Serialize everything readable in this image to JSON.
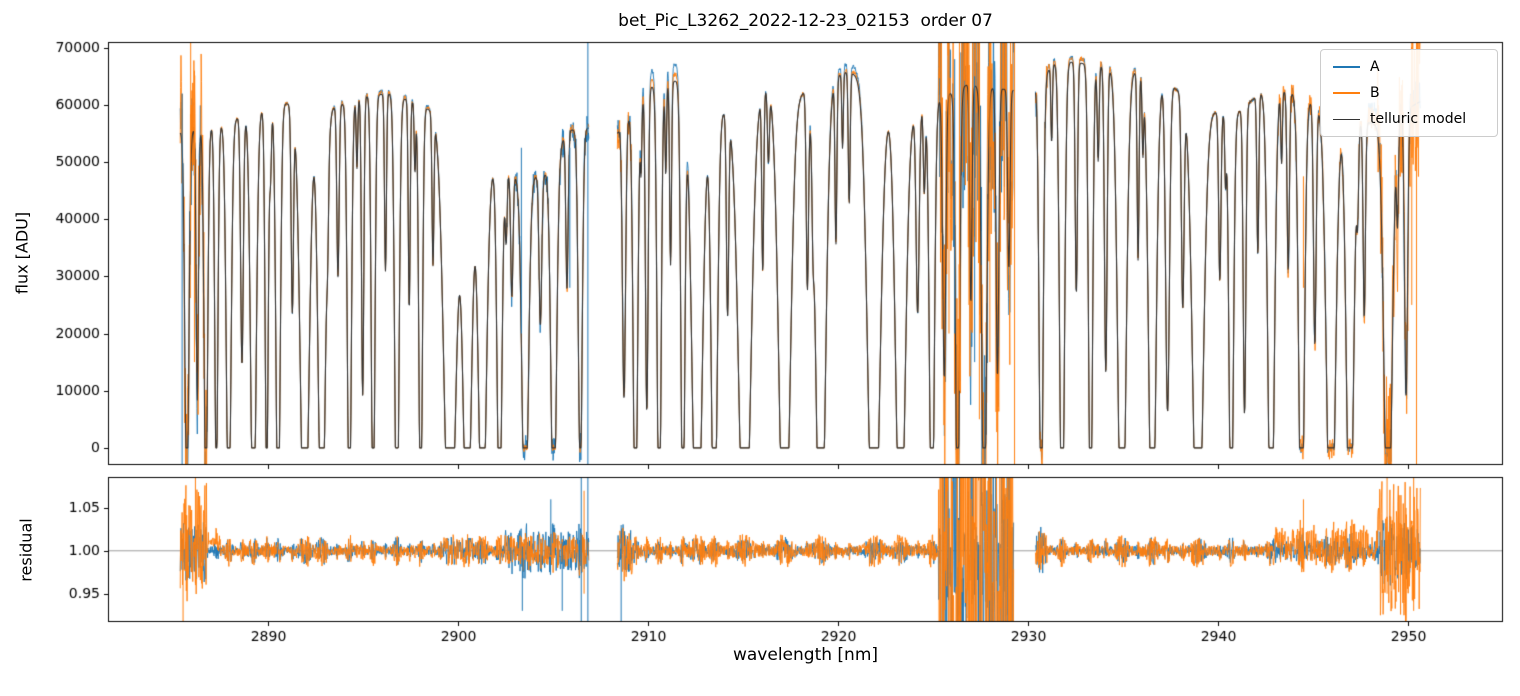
{
  "chart_data": {
    "type": "line",
    "title": "bet_Pic_L3262_2022-12-23_02153  order 07",
    "xlabel": "wavelength [nm]",
    "xlim": [
      2881.6,
      2955.0
    ],
    "xticks": [
      2890,
      2900,
      2910,
      2920,
      2930,
      2940,
      2950
    ],
    "legend_labels": [
      "A",
      "B",
      "telluric model"
    ],
    "legend_position": "upper right",
    "grid": false,
    "colors": {
      "A": "#1f77b4",
      "B": "#ff7f0e",
      "model": "#333333",
      "axhline": "#808080"
    },
    "panels": [
      {
        "ylabel": "flux [ADU]",
        "ylim": [
          -3000,
          71000
        ],
        "yticks": [
          0,
          10000,
          20000,
          30000,
          40000,
          50000,
          60000,
          70000
        ],
        "ytick_labels": [
          "0",
          "10000",
          "20000",
          "30000",
          "40000",
          "50000",
          "60000",
          "70000"
        ]
      },
      {
        "ylabel": "residual",
        "ylim": [
          0.917,
          1.086
        ],
        "yticks": [
          0.95,
          1.0,
          1.05
        ],
        "ytick_labels": [
          "0.95",
          "1.00",
          "1.05"
        ],
        "axhline": 1.0
      }
    ],
    "segments": [
      [
        2885.4,
        2906.9
      ],
      [
        2908.4,
        2929.25
      ],
      [
        2930.4,
        2950.65
      ]
    ],
    "continuum_points": [
      [
        2885.0,
        55000
      ],
      [
        2887.5,
        56500
      ],
      [
        2890.5,
        60500
      ],
      [
        2893.0,
        59000
      ],
      [
        2895.0,
        61500
      ],
      [
        2896.5,
        62000
      ],
      [
        2898.0,
        60000
      ],
      [
        2899.5,
        57500
      ],
      [
        2901.5,
        50000
      ],
      [
        2903.0,
        47500
      ],
      [
        2904.5,
        47500
      ],
      [
        2905.8,
        55500
      ],
      [
        2907.0,
        56000
      ],
      [
        2908.4,
        55000
      ],
      [
        2910.0,
        63000
      ],
      [
        2911.5,
        64200
      ],
      [
        2913.0,
        59500
      ],
      [
        2914.5,
        58500
      ],
      [
        2916.5,
        63500
      ],
      [
        2918.0,
        62000
      ],
      [
        2920.5,
        65800
      ],
      [
        2921.8,
        64500
      ],
      [
        2923.5,
        57500
      ],
      [
        2925.0,
        60500
      ],
      [
        2926.8,
        63500
      ],
      [
        2929.3,
        62500
      ],
      [
        2930.4,
        63000
      ],
      [
        2931.5,
        67800
      ],
      [
        2933.5,
        67000
      ],
      [
        2935.5,
        66000
      ],
      [
        2937.5,
        63500
      ],
      [
        2939.0,
        59500
      ],
      [
        2940.8,
        58000
      ],
      [
        2942.5,
        62800
      ],
      [
        2944.0,
        62000
      ],
      [
        2945.5,
        59500
      ],
      [
        2947.0,
        57500
      ],
      [
        2948.5,
        56500
      ],
      [
        2950.6,
        60500
      ]
    ],
    "absorption_lines": [
      [
        2885.75,
        1.2,
        0.1
      ],
      [
        2886.3,
        0.85,
        0.06
      ],
      [
        2886.75,
        1.2,
        0.09
      ],
      [
        2887.3,
        1.1,
        0.08
      ],
      [
        2887.95,
        1.25,
        0.12
      ],
      [
        2888.65,
        0.75,
        0.07
      ],
      [
        2889.25,
        1.3,
        0.14
      ],
      [
        2889.95,
        1.1,
        0.08
      ],
      [
        2890.15,
        0.2,
        0.05
      ],
      [
        2890.55,
        1.25,
        0.11
      ],
      [
        2891.3,
        0.6,
        0.06
      ],
      [
        2891.95,
        1.35,
        0.22
      ],
      [
        2892.85,
        1.35,
        0.18
      ],
      [
        2893.15,
        0.25,
        0.05
      ],
      [
        2893.7,
        0.5,
        0.06
      ],
      [
        2894.3,
        1.25,
        0.1
      ],
      [
        2894.7,
        0.2,
        0.04
      ],
      [
        2895.0,
        0.85,
        0.06
      ],
      [
        2895.55,
        1.25,
        0.09
      ],
      [
        2896.2,
        0.5,
        0.05
      ],
      [
        2896.8,
        1.3,
        0.11
      ],
      [
        2897.45,
        0.6,
        0.05
      ],
      [
        2897.75,
        0.2,
        0.04
      ],
      [
        2898.05,
        1.25,
        0.09
      ],
      [
        2898.7,
        0.45,
        0.05
      ],
      [
        2899.6,
        1.4,
        0.3
      ],
      [
        2900.5,
        1.35,
        0.22
      ],
      [
        2901.3,
        1.35,
        0.2
      ],
      [
        2902.2,
        1.3,
        0.12
      ],
      [
        2902.55,
        0.25,
        0.05
      ],
      [
        2902.85,
        0.45,
        0.06
      ],
      [
        2903.55,
        1.35,
        0.16
      ],
      [
        2904.35,
        0.55,
        0.07
      ],
      [
        2905.05,
        1.3,
        0.14
      ],
      [
        2905.75,
        0.5,
        0.06
      ],
      [
        2906.45,
        1.1,
        0.1
      ],
      [
        2908.75,
        0.85,
        0.08
      ],
      [
        2909.35,
        1.3,
        0.11
      ],
      [
        2909.65,
        0.2,
        0.04
      ],
      [
        2909.95,
        0.9,
        0.07
      ],
      [
        2910.6,
        1.3,
        0.1
      ],
      [
        2910.95,
        0.25,
        0.04
      ],
      [
        2911.2,
        0.5,
        0.05
      ],
      [
        2911.85,
        1.25,
        0.1
      ],
      [
        2912.6,
        1.4,
        0.25
      ],
      [
        2913.5,
        1.35,
        0.15
      ],
      [
        2914.2,
        0.6,
        0.06
      ],
      [
        2915.1,
        1.4,
        0.3
      ],
      [
        2916.05,
        0.5,
        0.05
      ],
      [
        2916.35,
        0.2,
        0.05
      ],
      [
        2917.2,
        1.4,
        0.28
      ],
      [
        2918.4,
        0.55,
        0.06
      ],
      [
        2918.7,
        0.25,
        0.05
      ],
      [
        2919.1,
        1.4,
        0.24
      ],
      [
        2919.9,
        0.45,
        0.05
      ],
      [
        2920.25,
        0.2,
        0.04
      ],
      [
        2920.6,
        0.35,
        0.05
      ],
      [
        2921.9,
        1.4,
        0.3
      ],
      [
        2923.3,
        1.35,
        0.24
      ],
      [
        2924.2,
        0.6,
        0.08
      ],
      [
        2924.55,
        0.25,
        0.05
      ],
      [
        2924.95,
        1.35,
        0.12
      ],
      [
        2925.6,
        0.8,
        0.08
      ],
      [
        2926.3,
        1.25,
        0.1
      ],
      [
        2927.0,
        0.6,
        0.06
      ],
      [
        2927.7,
        1.3,
        0.12
      ],
      [
        2928.4,
        0.8,
        0.07
      ],
      [
        2929.0,
        0.5,
        0.06
      ],
      [
        2930.7,
        1.25,
        0.1
      ],
      [
        2931.25,
        0.2,
        0.04
      ],
      [
        2931.8,
        1.3,
        0.12
      ],
      [
        2932.55,
        0.6,
        0.06
      ],
      [
        2933.3,
        1.25,
        0.1
      ],
      [
        2933.7,
        0.25,
        0.05
      ],
      [
        2934.1,
        0.8,
        0.07
      ],
      [
        2934.95,
        1.4,
        0.2
      ],
      [
        2935.8,
        0.5,
        0.05
      ],
      [
        2936.05,
        0.2,
        0.04
      ],
      [
        2936.55,
        1.35,
        0.18
      ],
      [
        2937.35,
        0.9,
        0.1
      ],
      [
        2938.15,
        0.6,
        0.07
      ],
      [
        2938.95,
        1.4,
        0.26
      ],
      [
        2940.1,
        0.5,
        0.06
      ],
      [
        2940.4,
        0.2,
        0.04
      ],
      [
        2940.7,
        1.3,
        0.11
      ],
      [
        2941.4,
        0.9,
        0.07
      ],
      [
        2942.1,
        0.45,
        0.05
      ],
      [
        2942.8,
        1.35,
        0.16
      ],
      [
        2943.35,
        0.2,
        0.04
      ],
      [
        2943.7,
        0.5,
        0.06
      ],
      [
        2944.4,
        1.35,
        0.14
      ],
      [
        2945.1,
        0.7,
        0.07
      ],
      [
        2945.95,
        1.4,
        0.22
      ],
      [
        2946.95,
        1.35,
        0.18
      ],
      [
        2947.35,
        0.25,
        0.05
      ],
      [
        2947.7,
        0.6,
        0.06
      ],
      [
        2948.95,
        1.35,
        0.2
      ],
      [
        2949.45,
        0.3,
        0.05
      ],
      [
        2949.9,
        0.85,
        0.08
      ]
    ],
    "noise_regions": [
      {
        "range": [
          2885.4,
          2886.8
        ],
        "fluxA": 0.15,
        "fluxB": 0.28,
        "resA": 0.025,
        "resB": 0.05
      },
      {
        "range": [
          2902.5,
          2906.9
        ],
        "fluxA": 0.05,
        "fluxB": 0.015,
        "resA": 0.018,
        "resB": 0.01
      },
      {
        "range": [
          2908.4,
          2909.2
        ],
        "fluxA": 0.05,
        "fluxB": 0.05,
        "resA": 0.02,
        "resB": 0.02
      },
      {
        "range": [
          2925.3,
          2929.25
        ],
        "fluxA": 0.32,
        "fluxB": 0.45,
        "resA": 0.12,
        "resB": 0.2
      },
      {
        "range": [
          2930.4,
          2931.0
        ],
        "fluxA": 0.05,
        "fluxB": 0.05,
        "resA": 0.012,
        "resB": 0.012
      },
      {
        "range": [
          2943.0,
          2948.4
        ],
        "fluxA": 0.015,
        "fluxB": 0.035,
        "resA": 0.006,
        "resB": 0.013
      },
      {
        "range": [
          2948.4,
          2950.65
        ],
        "fluxA": 0.07,
        "fluxB": 0.22,
        "resA": 0.025,
        "resB": 0.07
      }
    ],
    "offsets": [
      {
        "range": [
          2893.5,
          2899.0
        ],
        "A": 0.008,
        "B": 0.005
      },
      {
        "range": [
          2909.6,
          2912.2
        ],
        "A": 0.045,
        "B": 0.018
      },
      {
        "range": [
          2918.3,
          2921.4
        ],
        "A": 0.02,
        "B": 0.008
      },
      {
        "range": [
          2930.4,
          2936.2
        ],
        "A": 0.012,
        "B": 0.012
      },
      {
        "range": [
          2947.9,
          2948.7
        ],
        "A": 0.05,
        "B": 0.02
      }
    ],
    "res_bias": [
      {
        "range": [
          2943.0,
          2948.4
        ],
        "B": 0.006
      },
      {
        "range": [
          2885.4,
          2887.5
        ],
        "B": 0.01
      }
    ],
    "spikes": [
      {
        "x": 2885.5,
        "s": "A",
        "y0": -3000,
        "y1": 62000
      },
      {
        "x": 2885.95,
        "s": "B",
        "y0": 38000,
        "y1": 71000
      },
      {
        "x": 2886.15,
        "s": "B",
        "y0": 15000,
        "y1": 66000
      },
      {
        "x": 2903.35,
        "s": "A",
        "y0": 20000,
        "y1": 52500
      },
      {
        "x": 2905.9,
        "s": "A",
        "y0": 28000,
        "y1": 52500
      },
      {
        "x": 2906.85,
        "s": "A",
        "y0": -3000,
        "y1": 71000
      },
      {
        "x": 2925.85,
        "s": "B",
        "y0": 20000,
        "y1": 71000
      },
      {
        "x": 2926.4,
        "s": "B",
        "y0": 10000,
        "y1": 71000
      },
      {
        "x": 2926.9,
        "s": "B",
        "y0": 25000,
        "y1": 71000
      },
      {
        "x": 2927.45,
        "s": "B",
        "y0": 5000,
        "y1": 71000
      },
      {
        "x": 2928.0,
        "s": "B",
        "y0": 15000,
        "y1": 71000
      },
      {
        "x": 2926.15,
        "s": "A",
        "y0": 20000,
        "y1": 68000
      },
      {
        "x": 2927.2,
        "s": "A",
        "y0": 15000,
        "y1": 65000
      },
      {
        "x": 2929.3,
        "s": "B",
        "y0": -3000,
        "y1": 71000
      },
      {
        "x": 2944.5,
        "s": "B",
        "y0": 28000,
        "y1": 47500
      },
      {
        "x": 2950.2,
        "s": "B",
        "y0": 25000,
        "y1": 71000
      },
      {
        "x": 2950.45,
        "s": "B",
        "y0": -3000,
        "y1": 71000
      }
    ],
    "res_spikes": [
      {
        "x": 2885.55,
        "s": "B",
        "r0": 0.917,
        "r1": 1.02
      },
      {
        "x": 2886.2,
        "s": "B",
        "r0": 0.96,
        "r1": 1.086
      },
      {
        "x": 2903.4,
        "s": "A",
        "r0": 0.93,
        "r1": 1.005
      },
      {
        "x": 2904.9,
        "s": "A",
        "r0": 0.995,
        "r1": 1.06
      },
      {
        "x": 2905.5,
        "s": "A",
        "r0": 0.93,
        "r1": 1.01
      },
      {
        "x": 2906.5,
        "s": "A",
        "r0": 0.917,
        "r1": 1.086
      },
      {
        "x": 2906.85,
        "s": "A",
        "r0": 0.917,
        "r1": 1.086
      },
      {
        "x": 2906.65,
        "s": "B",
        "r0": 0.95,
        "r1": 1.07
      },
      {
        "x": 2908.6,
        "s": "A",
        "r0": 0.917,
        "r1": 1.03
      },
      {
        "x": 2929.0,
        "s": "B",
        "r0": 0.917,
        "r1": 1.086
      },
      {
        "x": 2944.5,
        "s": "B",
        "r0": 0.99,
        "r1": 1.06
      },
      {
        "x": 2948.9,
        "s": "B",
        "r0": 0.95,
        "r1": 1.086
      },
      {
        "x": 2949.9,
        "s": "B",
        "r0": 0.917,
        "r1": 1.05
      },
      {
        "x": 2950.3,
        "s": "B",
        "r0": 0.93,
        "r1": 1.086
      }
    ]
  }
}
